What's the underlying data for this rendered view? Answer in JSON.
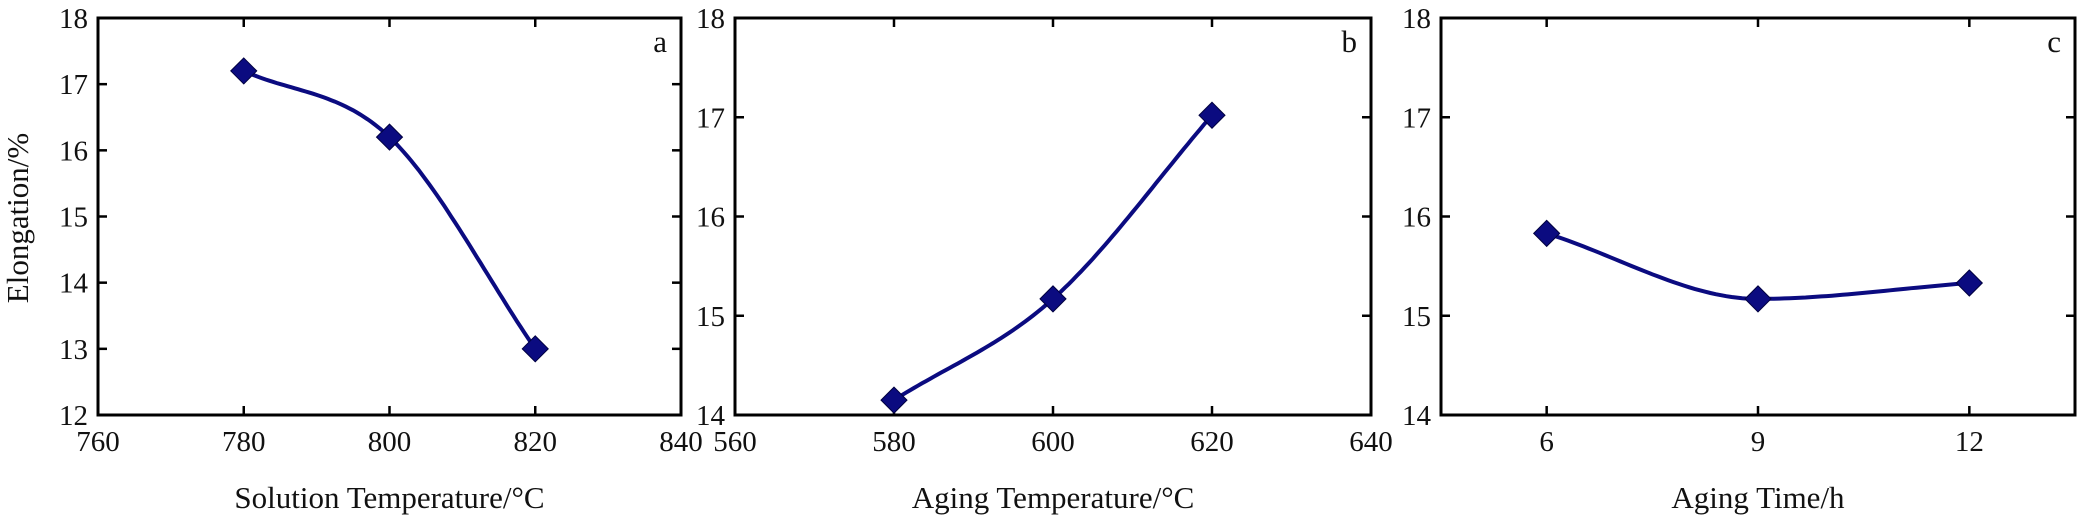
{
  "colors": {
    "series": "#0b0b80",
    "axis": "#000000",
    "background": "#ffffff"
  },
  "marker": "diamond",
  "chart_data": [
    {
      "type": "line",
      "panel": "a",
      "xlabel": "Solution Temperature/°C",
      "ylabel": "Elongation/%",
      "xlim": [
        760,
        840
      ],
      "ylim": [
        12,
        18
      ],
      "xticks": [
        "760",
        "780",
        "800",
        "820",
        "840"
      ],
      "yticks": [
        "12",
        "13",
        "14",
        "15",
        "16",
        "17",
        "18"
      ],
      "x": [
        780,
        800,
        820
      ],
      "y": [
        17.2,
        16.2,
        13.0
      ],
      "smooth": true,
      "grid": false
    },
    {
      "type": "line",
      "panel": "b",
      "xlabel": "Aging Temperature/°C",
      "ylabel": "",
      "xlim": [
        560,
        640
      ],
      "ylim": [
        14,
        18
      ],
      "xticks": [
        "560",
        "580",
        "600",
        "620",
        "640"
      ],
      "yticks": [
        "14",
        "15",
        "16",
        "17",
        "18"
      ],
      "x": [
        580,
        600,
        620
      ],
      "y": [
        14.15,
        15.17,
        17.02
      ],
      "smooth": true,
      "grid": false
    },
    {
      "type": "line",
      "panel": "c",
      "xlabel": "Aging Time/h",
      "ylabel": "",
      "xlim": [
        4.5,
        13.5
      ],
      "ylim": [
        14,
        18
      ],
      "xticks": [
        "6",
        "9",
        "12"
      ],
      "yticks": [
        "14",
        "15",
        "16",
        "17",
        "18"
      ],
      "x": [
        6,
        9,
        12
      ],
      "y": [
        15.83,
        15.17,
        15.33
      ],
      "smooth": true,
      "grid": false
    }
  ]
}
